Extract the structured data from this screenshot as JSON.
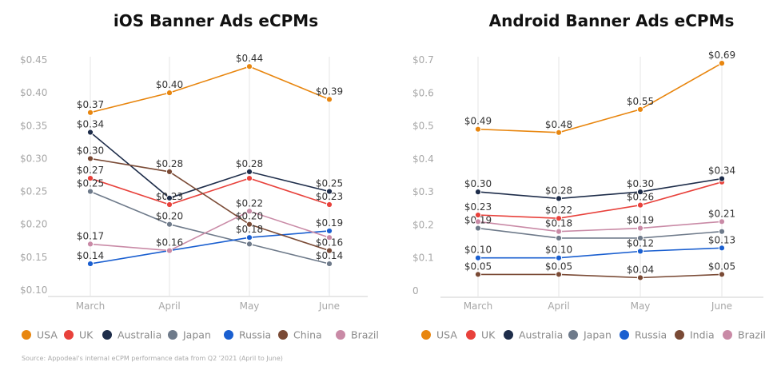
{
  "source_note": "Source: Appodeal's internal eCPM performance data from Q2 '2021 (April to June)",
  "chart_data": [
    {
      "type": "line",
      "title": "iOS Banner Ads eCPMs",
      "categories": [
        "March",
        "April",
        "May",
        "June"
      ],
      "ylim": [
        0.1,
        0.45
      ],
      "yticks": [
        0.1,
        0.15,
        0.2,
        0.25,
        0.3,
        0.35,
        0.4,
        0.45
      ],
      "ytick_labels": [
        "$0.10",
        "$0.15",
        "$0.20",
        "$0.25",
        "$0.30",
        "$0.35",
        "$0.40",
        "$0.45"
      ],
      "grid": "vertical",
      "legend_position": "bottom",
      "series": [
        {
          "name": "USA",
          "color": "#e8860f",
          "values": [
            0.37,
            0.4,
            0.44,
            0.39
          ],
          "labels": [
            "$0.37",
            "$0.40",
            "$0.44",
            "$0.39"
          ]
        },
        {
          "name": "UK",
          "color": "#e8413b",
          "values": [
            0.27,
            0.23,
            0.27,
            0.23
          ],
          "labels": [
            "$0.27",
            "$0.23",
            "",
            "$0.23"
          ]
        },
        {
          "name": "Australia",
          "color": "#1e2d4a",
          "values": [
            0.34,
            0.24,
            0.28,
            0.25
          ],
          "labels": [
            "$0.34",
            "",
            "$0.28",
            "$0.25"
          ]
        },
        {
          "name": "Japan",
          "color": "#6e7a8a",
          "values": [
            0.25,
            0.2,
            0.17,
            0.14
          ],
          "labels": [
            "$0.25",
            "$0.20",
            "",
            "$0.14"
          ]
        },
        {
          "name": "Russia",
          "color": "#1a5fd0",
          "values": [
            0.14,
            0.16,
            0.18,
            0.19
          ],
          "labels": [
            "$0.14",
            "",
            "$0.18",
            "$0.19"
          ]
        },
        {
          "name": "China",
          "color": "#7a4a35",
          "values": [
            0.3,
            0.28,
            0.2,
            0.16
          ],
          "labels": [
            "$0.30",
            "$0.28",
            "$0.20",
            "$0.16"
          ]
        },
        {
          "name": "Brazil",
          "color": "#c98aa6",
          "values": [
            0.17,
            0.16,
            0.22,
            0.18
          ],
          "labels": [
            "$0.17",
            "$0.16",
            "$0.22",
            ""
          ]
        }
      ]
    },
    {
      "type": "line",
      "title": "Android Banner Ads eCPMs",
      "categories": [
        "March",
        "April",
        "May",
        "June"
      ],
      "ylim": [
        0,
        0.7
      ],
      "yticks": [
        0,
        0.1,
        0.2,
        0.3,
        0.4,
        0.5,
        0.6,
        0.7
      ],
      "ytick_labels": [
        "0",
        "$0.1",
        "$0.2",
        "$0.3",
        "$0.4",
        "$0.5",
        "$0.6",
        "$0.7"
      ],
      "grid": "vertical",
      "legend_position": "bottom",
      "series": [
        {
          "name": "USA",
          "color": "#e8860f",
          "values": [
            0.49,
            0.48,
            0.55,
            0.69
          ],
          "labels": [
            "$0.49",
            "$0.48",
            "$0.55",
            "$0.69"
          ]
        },
        {
          "name": "UK",
          "color": "#e8413b",
          "values": [
            0.23,
            0.22,
            0.26,
            0.33
          ],
          "labels": [
            "$0.23",
            "$0.22",
            "$0.26",
            ""
          ]
        },
        {
          "name": "Australia",
          "color": "#1e2d4a",
          "values": [
            0.3,
            0.28,
            0.3,
            0.34
          ],
          "labels": [
            "$0.30",
            "$0.28",
            "$0.30",
            "$0.34"
          ]
        },
        {
          "name": "Japan",
          "color": "#6e7a8a",
          "values": [
            0.19,
            0.16,
            0.16,
            0.18
          ],
          "labels": [
            "$0.19",
            "",
            "",
            ""
          ]
        },
        {
          "name": "Russia",
          "color": "#1a5fd0",
          "values": [
            0.1,
            0.1,
            0.12,
            0.13
          ],
          "labels": [
            "$0.10",
            "$0.10",
            "$0.12",
            "$0.13"
          ]
        },
        {
          "name": "India",
          "color": "#7a4a35",
          "values": [
            0.05,
            0.05,
            0.04,
            0.05
          ],
          "labels": [
            "$0.05",
            "$0.05",
            "$0.04",
            "$0.05"
          ]
        },
        {
          "name": "Brazil",
          "color": "#c98aa6",
          "values": [
            0.21,
            0.18,
            0.19,
            0.21
          ],
          "labels": [
            "",
            "$0.18",
            "$0.19",
            "$0.21"
          ]
        }
      ]
    }
  ]
}
